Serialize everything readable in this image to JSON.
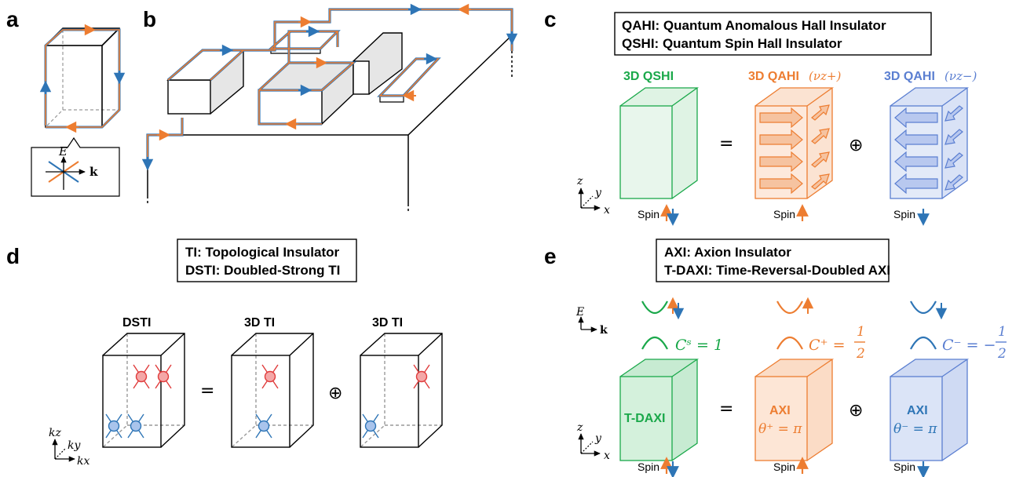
{
  "panels": {
    "a": "a",
    "b": "b",
    "c": "c",
    "d": "d",
    "e": "e"
  },
  "colors": {
    "orange": "#ed7d31",
    "blue": "#2e75b6",
    "green": "#1aa84a",
    "red": "#e03c3c",
    "lightblue": "#5b7fd1"
  },
  "panel_a": {
    "energy": "E",
    "momentum": "k"
  },
  "panel_c": {
    "legend": [
      "QAHI: Quantum Anomalous Hall Insulator",
      "QSHI: Quantum Spin Hall Insulator"
    ],
    "qshi": "3D QSHI",
    "qahi_plus": "3D QAHI",
    "qahi_minus": "3D QAHI",
    "nu_plus": "(νz+)",
    "nu_minus": "(νz−)",
    "eq": "=",
    "oplus": "⊕",
    "spin": "Spin",
    "axes": {
      "z": "z",
      "y": "y",
      "x": "x"
    }
  },
  "panel_d": {
    "legend": [
      "TI: Topological Insulator",
      "DSTI: Doubled-Strong TI"
    ],
    "dsti": "DSTI",
    "ti1": "3D TI",
    "ti2": "3D TI",
    "eq": "=",
    "oplus": "⊕",
    "axes": {
      "kz": "kz",
      "ky": "ky",
      "kx": "kx"
    }
  },
  "panel_e": {
    "legend": [
      "AXI: Axion Insulator",
      "T-DAXI: Time-Reversal-Doubled AXI"
    ],
    "energy": "E",
    "momentum": "k",
    "cs": "Cˢ = 1",
    "cplus_lhs": "C⁺ =",
    "cminus_lhs": "C⁻ = −",
    "half_num": "1",
    "half_den": "2",
    "tdaxi": "T-DAXI",
    "axi1": "AXI",
    "axi2": "AXI",
    "theta_plus": "θ⁺ = π",
    "theta_minus": "θ⁻ = π",
    "eq": "=",
    "oplus": "⊕",
    "spin": "Spin",
    "axes": {
      "z": "z",
      "y": "y",
      "x": "x"
    }
  }
}
